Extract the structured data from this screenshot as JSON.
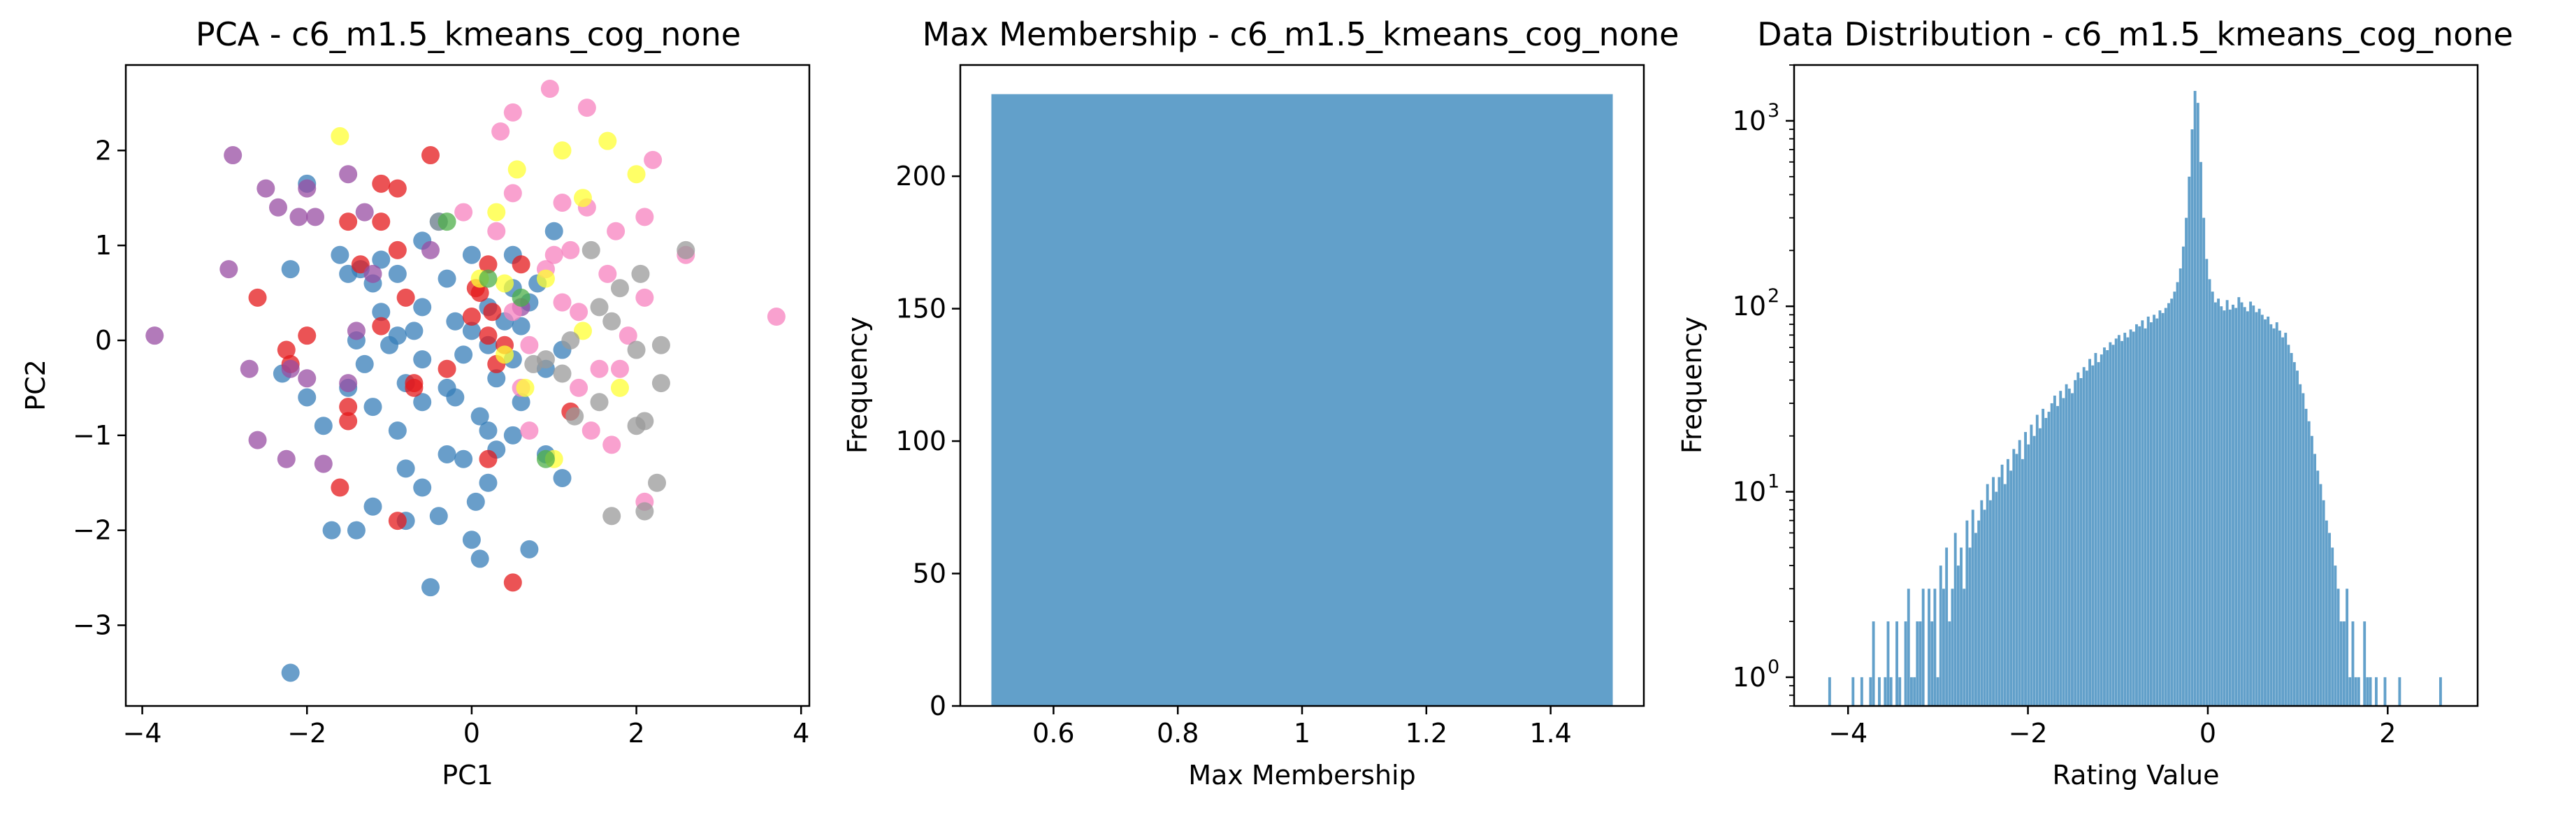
{
  "chart_data": [
    {
      "type": "scatter",
      "title": "PCA - c6_m1.5_kmeans_cog_none",
      "xlabel": "PC1",
      "ylabel": "PC2",
      "xlim": [
        -4.2,
        4.1
      ],
      "ylim": [
        -3.85,
        2.9
      ],
      "xticks": [
        -4,
        -2,
        0,
        2,
        4
      ],
      "yticks": [
        -3,
        -2,
        -1,
        0,
        1,
        2
      ],
      "grid": false,
      "series": [
        {
          "color": "#377eb8",
          "points": [
            [
              -2.2,
              -3.5
            ],
            [
              -0.5,
              -2.6
            ],
            [
              0.1,
              -2.3
            ],
            [
              -1.7,
              -2.0
            ],
            [
              -1.4,
              -2.0
            ],
            [
              0.0,
              -2.1
            ],
            [
              0.7,
              -2.2
            ],
            [
              -1.2,
              -1.75
            ],
            [
              -0.6,
              -1.55
            ],
            [
              -0.4,
              -1.85
            ],
            [
              0.2,
              -1.5
            ],
            [
              -0.8,
              -1.35
            ],
            [
              -0.3,
              -1.2
            ],
            [
              -0.1,
              -1.25
            ],
            [
              0.3,
              -1.15
            ],
            [
              0.9,
              -1.2
            ],
            [
              1.1,
              -1.45
            ],
            [
              0.5,
              -1.0
            ],
            [
              -0.9,
              -0.95
            ],
            [
              -1.8,
              -0.9
            ],
            [
              -1.2,
              -0.7
            ],
            [
              -0.6,
              -0.65
            ],
            [
              0.1,
              -0.8
            ],
            [
              0.6,
              -0.65
            ],
            [
              -2.0,
              -0.6
            ],
            [
              -1.5,
              -0.5
            ],
            [
              -0.8,
              -0.45
            ],
            [
              -0.3,
              -0.5
            ],
            [
              0.3,
              -0.4
            ],
            [
              0.9,
              -0.3
            ],
            [
              -2.3,
              -0.35
            ],
            [
              -1.3,
              -0.25
            ],
            [
              -0.6,
              -0.2
            ],
            [
              -0.1,
              -0.15
            ],
            [
              0.5,
              -0.2
            ],
            [
              1.1,
              -0.1
            ],
            [
              -1.4,
              0.0
            ],
            [
              -0.9,
              0.05
            ],
            [
              0.0,
              0.1
            ],
            [
              0.4,
              0.2
            ],
            [
              -1.1,
              0.3
            ],
            [
              -0.6,
              0.35
            ],
            [
              0.2,
              0.35
            ],
            [
              0.7,
              0.4
            ],
            [
              -1.5,
              0.7
            ],
            [
              -1.2,
              0.6
            ],
            [
              -0.9,
              0.7
            ],
            [
              -0.3,
              0.65
            ],
            [
              0.5,
              0.55
            ],
            [
              0.8,
              0.6
            ],
            [
              -2.2,
              0.75
            ],
            [
              -1.6,
              0.9
            ],
            [
              -1.1,
              0.85
            ],
            [
              -0.6,
              1.05
            ],
            [
              0.0,
              0.9
            ],
            [
              0.5,
              0.9
            ],
            [
              1.0,
              1.15
            ],
            [
              -2.0,
              1.65
            ],
            [
              -0.4,
              1.25
            ],
            [
              -0.2,
              0.2
            ],
            [
              -0.7,
              0.1
            ],
            [
              0.2,
              -0.05
            ],
            [
              -1.0,
              -0.05
            ],
            [
              0.6,
              0.15
            ],
            [
              -0.2,
              -0.6
            ],
            [
              -0.8,
              -1.9
            ],
            [
              0.05,
              -1.7
            ],
            [
              0.2,
              -0.95
            ],
            [
              -1.35,
              0.75
            ]
          ]
        },
        {
          "color": "#e41a1c",
          "points": [
            [
              0.5,
              -2.55
            ],
            [
              -1.6,
              -1.55
            ],
            [
              -0.9,
              -1.9
            ],
            [
              -1.5,
              -0.85
            ],
            [
              -1.5,
              -0.7
            ],
            [
              -0.7,
              -0.45
            ],
            [
              0.2,
              -1.25
            ],
            [
              1.2,
              -0.75
            ],
            [
              0.4,
              -0.05
            ],
            [
              -2.2,
              -0.25
            ],
            [
              -2.0,
              0.05
            ],
            [
              -1.1,
              0.15
            ],
            [
              -0.7,
              -0.5
            ],
            [
              -0.8,
              0.45
            ],
            [
              0.1,
              0.5
            ],
            [
              0.2,
              0.8
            ],
            [
              0.6,
              0.8
            ],
            [
              -0.9,
              0.95
            ],
            [
              -1.1,
              1.25
            ],
            [
              -1.5,
              1.25
            ],
            [
              -0.9,
              1.6
            ],
            [
              -0.5,
              1.95
            ],
            [
              -2.6,
              0.45
            ],
            [
              -2.25,
              -0.1
            ],
            [
              0.0,
              0.25
            ],
            [
              0.2,
              0.05
            ],
            [
              -1.1,
              1.65
            ],
            [
              0.25,
              0.3
            ],
            [
              -0.3,
              -0.3
            ],
            [
              0.3,
              -0.25
            ],
            [
              0.05,
              0.55
            ],
            [
              -1.35,
              0.8
            ]
          ]
        },
        {
          "color": "#984ea3",
          "points": [
            [
              -3.85,
              0.05
            ],
            [
              -2.9,
              1.95
            ],
            [
              -2.95,
              0.75
            ],
            [
              -2.5,
              1.6
            ],
            [
              -2.35,
              1.4
            ],
            [
              -2.1,
              1.3
            ],
            [
              -1.9,
              1.3
            ],
            [
              -2.0,
              1.6
            ],
            [
              -1.5,
              1.75
            ],
            [
              -1.3,
              1.35
            ],
            [
              -1.2,
              0.7
            ],
            [
              -1.4,
              0.1
            ],
            [
              -1.5,
              -0.45
            ],
            [
              -2.6,
              -1.05
            ],
            [
              -2.25,
              -1.25
            ],
            [
              -1.8,
              -1.3
            ],
            [
              -2.0,
              -0.4
            ],
            [
              -2.2,
              -0.3
            ],
            [
              -2.7,
              -0.3
            ],
            [
              -0.5,
              0.95
            ],
            [
              0.6,
              0.35
            ]
          ]
        },
        {
          "color": "#f781bf",
          "points": [
            [
              0.95,
              2.65
            ],
            [
              1.4,
              2.45
            ],
            [
              0.5,
              2.4
            ],
            [
              0.35,
              2.2
            ],
            [
              2.2,
              1.9
            ],
            [
              3.7,
              0.25
            ],
            [
              2.6,
              0.9
            ],
            [
              2.1,
              1.3
            ],
            [
              1.75,
              1.15
            ],
            [
              1.4,
              1.4
            ],
            [
              1.1,
              1.45
            ],
            [
              0.5,
              1.55
            ],
            [
              1.2,
              0.95
            ],
            [
              0.9,
              0.75
            ],
            [
              1.65,
              0.7
            ],
            [
              2.1,
              0.45
            ],
            [
              1.1,
              0.4
            ],
            [
              0.5,
              0.3
            ],
            [
              1.3,
              0.3
            ],
            [
              1.9,
              0.05
            ],
            [
              1.8,
              -0.3
            ],
            [
              1.55,
              -0.3
            ],
            [
              1.3,
              -0.5
            ],
            [
              0.7,
              -0.05
            ],
            [
              0.6,
              -0.5
            ],
            [
              1.45,
              -0.95
            ],
            [
              1.7,
              -1.1
            ],
            [
              2.1,
              -1.7
            ],
            [
              0.7,
              -0.95
            ],
            [
              1.0,
              0.9
            ],
            [
              -0.1,
              1.35
            ],
            [
              0.3,
              1.15
            ]
          ]
        },
        {
          "color": "#ffff33",
          "points": [
            [
              -1.6,
              2.15
            ],
            [
              1.65,
              2.1
            ],
            [
              1.1,
              2.0
            ],
            [
              0.55,
              1.8
            ],
            [
              2.0,
              1.75
            ],
            [
              1.35,
              1.5
            ],
            [
              0.3,
              1.35
            ],
            [
              0.9,
              0.65
            ],
            [
              0.4,
              0.6
            ],
            [
              0.1,
              0.65
            ],
            [
              1.35,
              0.1
            ],
            [
              0.4,
              -0.15
            ],
            [
              0.65,
              -0.5
            ],
            [
              1.8,
              -0.5
            ],
            [
              1.0,
              -1.25
            ]
          ]
        },
        {
          "color": "#999999",
          "points": [
            [
              1.45,
              0.95
            ],
            [
              2.6,
              0.95
            ],
            [
              2.05,
              0.7
            ],
            [
              1.8,
              0.55
            ],
            [
              1.55,
              0.35
            ],
            [
              0.9,
              -0.2
            ],
            [
              1.1,
              -0.35
            ],
            [
              1.7,
              0.2
            ],
            [
              2.3,
              -0.05
            ],
            [
              2.0,
              -0.1
            ],
            [
              2.3,
              -0.45
            ],
            [
              1.55,
              -0.65
            ],
            [
              2.1,
              -0.85
            ],
            [
              2.0,
              -0.9
            ],
            [
              2.25,
              -1.5
            ],
            [
              1.7,
              -1.85
            ],
            [
              2.1,
              -1.8
            ],
            [
              1.2,
              0.0
            ],
            [
              0.75,
              -0.25
            ],
            [
              1.25,
              -0.8
            ],
            [
              -0.4,
              1.25
            ]
          ]
        },
        {
          "color": "#4daf4a",
          "points": [
            [
              -0.3,
              1.25
            ],
            [
              0.2,
              0.65
            ],
            [
              0.9,
              -1.25
            ],
            [
              0.6,
              0.45
            ]
          ]
        }
      ]
    },
    {
      "type": "bar",
      "title": "Max Membership - c6_m1.5_kmeans_cog_none",
      "xlabel": "Max Membership",
      "ylabel": "Frequency",
      "xlim": [
        0.45,
        1.55
      ],
      "ylim": [
        0,
        242
      ],
      "xticks": [
        0.6,
        0.8,
        1.0,
        1.2,
        1.4
      ],
      "yticks": [
        0,
        50,
        100,
        150,
        200
      ],
      "grid": false,
      "color": "#1f77b4",
      "bars": [
        {
          "x0": 0.5,
          "x1": 1.5,
          "value": 231
        }
      ]
    },
    {
      "type": "bar",
      "title": "Data Distribution - c6_m1.5_kmeans_cog_none",
      "xlabel": "Rating Value",
      "ylabel": "Frequency",
      "log_y": true,
      "xlim": [
        -4.6,
        3.0
      ],
      "ylim": [
        0.7,
        2000
      ],
      "xticks": [
        -4,
        -2,
        0,
        2
      ],
      "yticks": [
        1,
        10,
        100,
        1000
      ],
      "ytick_labels": [
        "10",
        "10",
        "10",
        "10"
      ],
      "ytick_exponents": [
        "0",
        "1",
        "2",
        "3"
      ],
      "grid": false,
      "color": "#1f77b4",
      "bin_start": -4.22,
      "bin_width": 0.0325,
      "counts": [
        1,
        0,
        0,
        0,
        0,
        0,
        0,
        0,
        1,
        0,
        0,
        1,
        0,
        0,
        1,
        2,
        0,
        1,
        0,
        1,
        2,
        1,
        0,
        2,
        1,
        0,
        2,
        3,
        1,
        1,
        2,
        2,
        3,
        0,
        3,
        2,
        3,
        1,
        4,
        3,
        5,
        2,
        3,
        6,
        4,
        5,
        3,
        7,
        5,
        8,
        6,
        7,
        9,
        8,
        11,
        9,
        12,
        10,
        12,
        14,
        11,
        15,
        13,
        17,
        16,
        19,
        15,
        21,
        18,
        23,
        20,
        26,
        22,
        28,
        25,
        27,
        30,
        33,
        29,
        35,
        32,
        38,
        36,
        34,
        40,
        44,
        41,
        47,
        45,
        52,
        48,
        56,
        50,
        55,
        60,
        58,
        64,
        62,
        67,
        70,
        65,
        72,
        68,
        75,
        73,
        80,
        78,
        84,
        76,
        88,
        82,
        90,
        86,
        95,
        92,
        98,
        104,
        110,
        120,
        135,
        160,
        210,
        300,
        500,
        900,
        1450,
        1250,
        600,
        300,
        180,
        140,
        120,
        105,
        110,
        100,
        95,
        108,
        96,
        102,
        98,
        112,
        105,
        99,
        94,
        106,
        101,
        93,
        97,
        90,
        85,
        88,
        80,
        76,
        82,
        74,
        68,
        72,
        62,
        56,
        50,
        45,
        38,
        34,
        28,
        24,
        20,
        16,
        13,
        11,
        9,
        7,
        6,
        5,
        4,
        3,
        2,
        2,
        3,
        1,
        2,
        1,
        1,
        0,
        2,
        1,
        1,
        0,
        1,
        0,
        0,
        1,
        0,
        0,
        0,
        0,
        1,
        0,
        0,
        0,
        0,
        0,
        0,
        0,
        0,
        0,
        0,
        0,
        0,
        0,
        1
      ]
    }
  ]
}
